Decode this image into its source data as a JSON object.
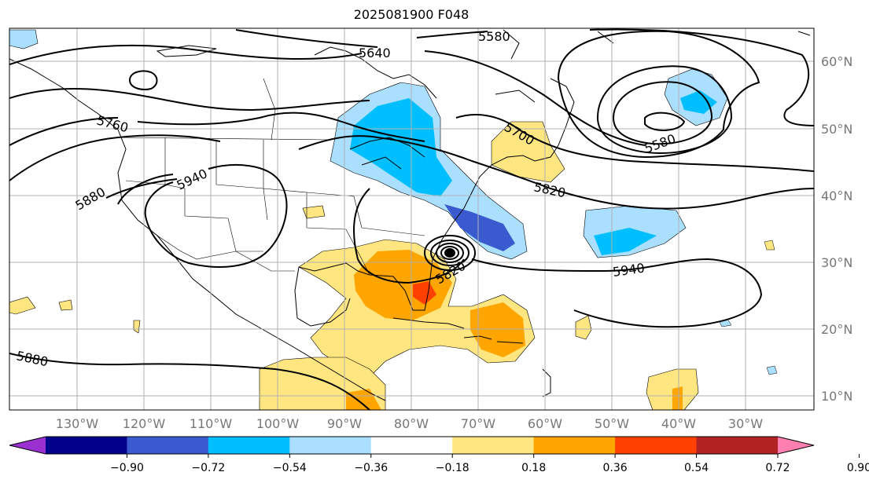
{
  "title": "2025081900 F048",
  "lon_labels": [
    "130°W",
    "120°W",
    "110°W",
    "100°W",
    "90°W",
    "80°W",
    "70°W",
    "60°W",
    "50°W",
    "40°W",
    "30°W"
  ],
  "lat_labels": [
    "60°N",
    "50°N",
    "40°N",
    "30°N",
    "20°N",
    "10°N"
  ],
  "contour_labels": [
    "5640",
    "5580",
    "5760",
    "5700",
    "5580",
    "5940",
    "5880",
    "5820",
    "5820",
    "5940",
    "5880"
  ],
  "colorbar": {
    "ticks": [
      "−0.90",
      "−0.72",
      "−0.54",
      "−0.36",
      "−0.18",
      "0.18",
      "0.36",
      "0.54",
      "0.72",
      "0.90"
    ],
    "colors": [
      "#9b30d0",
      "#00008b",
      "#3a5bd0",
      "#00bfff",
      "#aadfff",
      "#ffffff",
      "#ffe680",
      "#ffa500",
      "#ff4000",
      "#b22222",
      "#ff80b0"
    ]
  }
}
